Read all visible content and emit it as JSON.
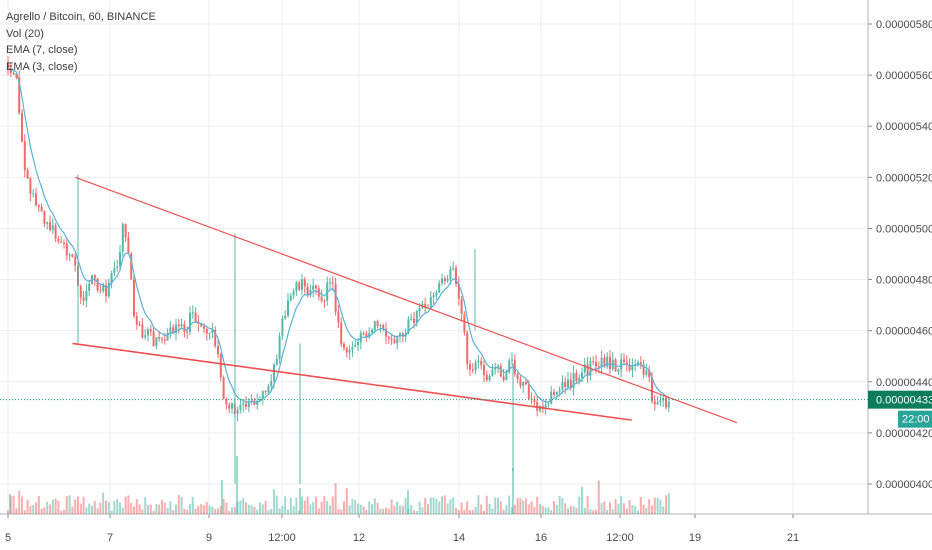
{
  "legend": {
    "title": "Agrello / Bitcoin, 60, BINANCE",
    "vol": "Vol (20)",
    "ema7": "EMA (7, close)",
    "ema3": "EMA (3, close)"
  },
  "colors": {
    "up": "#53b9a6",
    "down": "#ef6b6b",
    "ema": "#5bb1d8",
    "trendline": "#f05050",
    "last_price_line": "#1a9e73",
    "last_price_label_bg": "#0d7c5b",
    "time_label_bg": "#26a69a"
  },
  "chart_data": {
    "type": "candlestick",
    "symbol": "Agrello / Bitcoin",
    "interval": "60",
    "exchange": "BINANCE",
    "y_ticks": [
      "0.00000580",
      "0.00000560",
      "0.00000540",
      "0.00000520",
      "0.00000500",
      "0.00000480",
      "0.00000460",
      "0.00000440",
      "0.00000420",
      "0.00000400"
    ],
    "x_ticks": [
      "5",
      "7",
      "9",
      "12:00",
      "12",
      "14",
      "16",
      "12:00",
      "19",
      "21"
    ],
    "ylim": [
      3.92e-06,
      5.88e-06
    ],
    "last_price": "0.00000433",
    "time_to_close": "22:00",
    "indicators": [
      "Vol (20)",
      "EMA (7, close)",
      "EMA (3, close)"
    ],
    "grid": true,
    "price_path": [
      [
        0,
        5.65e-06
      ],
      [
        0.6,
        5.6e-06
      ],
      [
        1.2,
        5.2e-06
      ],
      [
        2.0,
        5.1e-06
      ],
      [
        2.8,
        5.02e-06
      ],
      [
        3.6,
        4.96e-06
      ],
      [
        4.2,
        4.92e-06
      ],
      [
        4.8,
        4.88e-06
      ],
      [
        5.1,
        4.7e-06
      ],
      [
        5.6,
        4.75e-06
      ],
      [
        6.0,
        4.8e-06
      ],
      [
        6.4,
        4.78e-06
      ],
      [
        6.9,
        4.75e-06
      ],
      [
        7.3,
        4.8e-06
      ],
      [
        7.8,
        4.85e-06
      ],
      [
        8.2,
        5e-06
      ],
      [
        8.6,
        4.9e-06
      ],
      [
        9.0,
        4.65e-06
      ],
      [
        9.5,
        4.6e-06
      ],
      [
        10.0,
        4.58e-06
      ],
      [
        10.5,
        4.56e-06
      ],
      [
        11.0,
        4.58e-06
      ],
      [
        11.6,
        4.6e-06
      ],
      [
        12.2,
        4.62e-06
      ],
      [
        12.7,
        4.6e-06
      ],
      [
        13.1,
        4.68e-06
      ],
      [
        13.5,
        4.62e-06
      ],
      [
        14.0,
        4.6e-06
      ],
      [
        14.6,
        4.58e-06
      ],
      [
        15.1,
        4.45e-06
      ],
      [
        15.4,
        4.34e-06
      ],
      [
        15.8,
        4.3e-06
      ],
      [
        16.3,
        4.3e-06
      ],
      [
        16.9,
        4.29e-06
      ],
      [
        17.3,
        4.31e-06
      ],
      [
        17.6,
        4.32e-06
      ],
      [
        17.9,
        4.34e-06
      ],
      [
        18.3,
        4.38e-06
      ],
      [
        18.7,
        4.42e-06
      ],
      [
        19.1,
        4.45e-06
      ],
      [
        19.5,
        4.6e-06
      ],
      [
        19.9,
        4.72e-06
      ],
      [
        20.3,
        4.75e-06
      ],
      [
        20.7,
        4.77e-06
      ],
      [
        21.1,
        4.78e-06
      ],
      [
        21.5,
        4.75e-06
      ],
      [
        21.8,
        4.76e-06
      ],
      [
        22.2,
        4.72e-06
      ],
      [
        22.6,
        4.74e-06
      ],
      [
        22.9,
        4.8e-06
      ],
      [
        23.1,
        4.81e-06
      ],
      [
        23.4,
        4.65e-06
      ],
      [
        23.8,
        4.55e-06
      ],
      [
        24.3,
        4.52e-06
      ],
      [
        24.8,
        4.54e-06
      ],
      [
        25.3,
        4.58e-06
      ],
      [
        25.8,
        4.61e-06
      ],
      [
        26.3,
        4.65e-06
      ],
      [
        26.8,
        4.6e-06
      ],
      [
        27.3,
        4.58e-06
      ],
      [
        27.8,
        4.56e-06
      ],
      [
        28.3,
        4.6e-06
      ],
      [
        28.8,
        4.65e-06
      ],
      [
        29.3,
        4.66e-06
      ],
      [
        29.8,
        4.7e-06
      ],
      [
        30.3,
        4.75e-06
      ],
      [
        30.8,
        4.78e-06
      ],
      [
        31.3,
        4.82e-06
      ],
      [
        31.7,
        4.84e-06
      ],
      [
        32.0,
        4.76e-06
      ],
      [
        32.4,
        4.65e-06
      ],
      [
        32.7,
        4.5e-06
      ],
      [
        33.1,
        4.46e-06
      ],
      [
        33.6,
        4.49e-06
      ],
      [
        34.1,
        4.42e-06
      ],
      [
        34.5,
        4.45e-06
      ],
      [
        35.0,
        4.46e-06
      ],
      [
        35.4,
        4.42e-06
      ],
      [
        35.9,
        4.48e-06
      ],
      [
        36.3,
        4.42e-06
      ],
      [
        36.8,
        4.4e-06
      ],
      [
        37.2,
        4.34e-06
      ],
      [
        37.6,
        4.3e-06
      ],
      [
        38.1,
        4.31e-06
      ],
      [
        38.6,
        4.33e-06
      ],
      [
        39.1,
        4.36e-06
      ],
      [
        39.6,
        4.38e-06
      ],
      [
        40.1,
        4.4e-06
      ],
      [
        40.6,
        4.42e-06
      ],
      [
        41.1,
        4.44e-06
      ],
      [
        41.6,
        4.46e-06
      ],
      [
        42.1,
        4.47e-06
      ],
      [
        42.6,
        4.48e-06
      ],
      [
        43.1,
        4.47e-06
      ],
      [
        43.6,
        4.46e-06
      ],
      [
        44.0,
        4.48e-06
      ],
      [
        44.4,
        4.47e-06
      ],
      [
        44.8,
        4.46e-06
      ],
      [
        45.2,
        4.45e-06
      ],
      [
        45.6,
        4.44e-06
      ],
      [
        46.0,
        4.3e-06
      ],
      [
        46.4,
        4.33e-06
      ],
      [
        46.8,
        4.32e-06
      ],
      [
        47.2,
        4.33e-06
      ]
    ],
    "trendlines": [
      {
        "from": [
          4.8,
          5.2e-06
        ],
        "to": [
          52.0,
          4.24e-06
        ]
      },
      {
        "from": [
          4.6,
          4.55e-06
        ],
        "to": [
          44.5,
          4.25e-06
        ]
      }
    ]
  }
}
